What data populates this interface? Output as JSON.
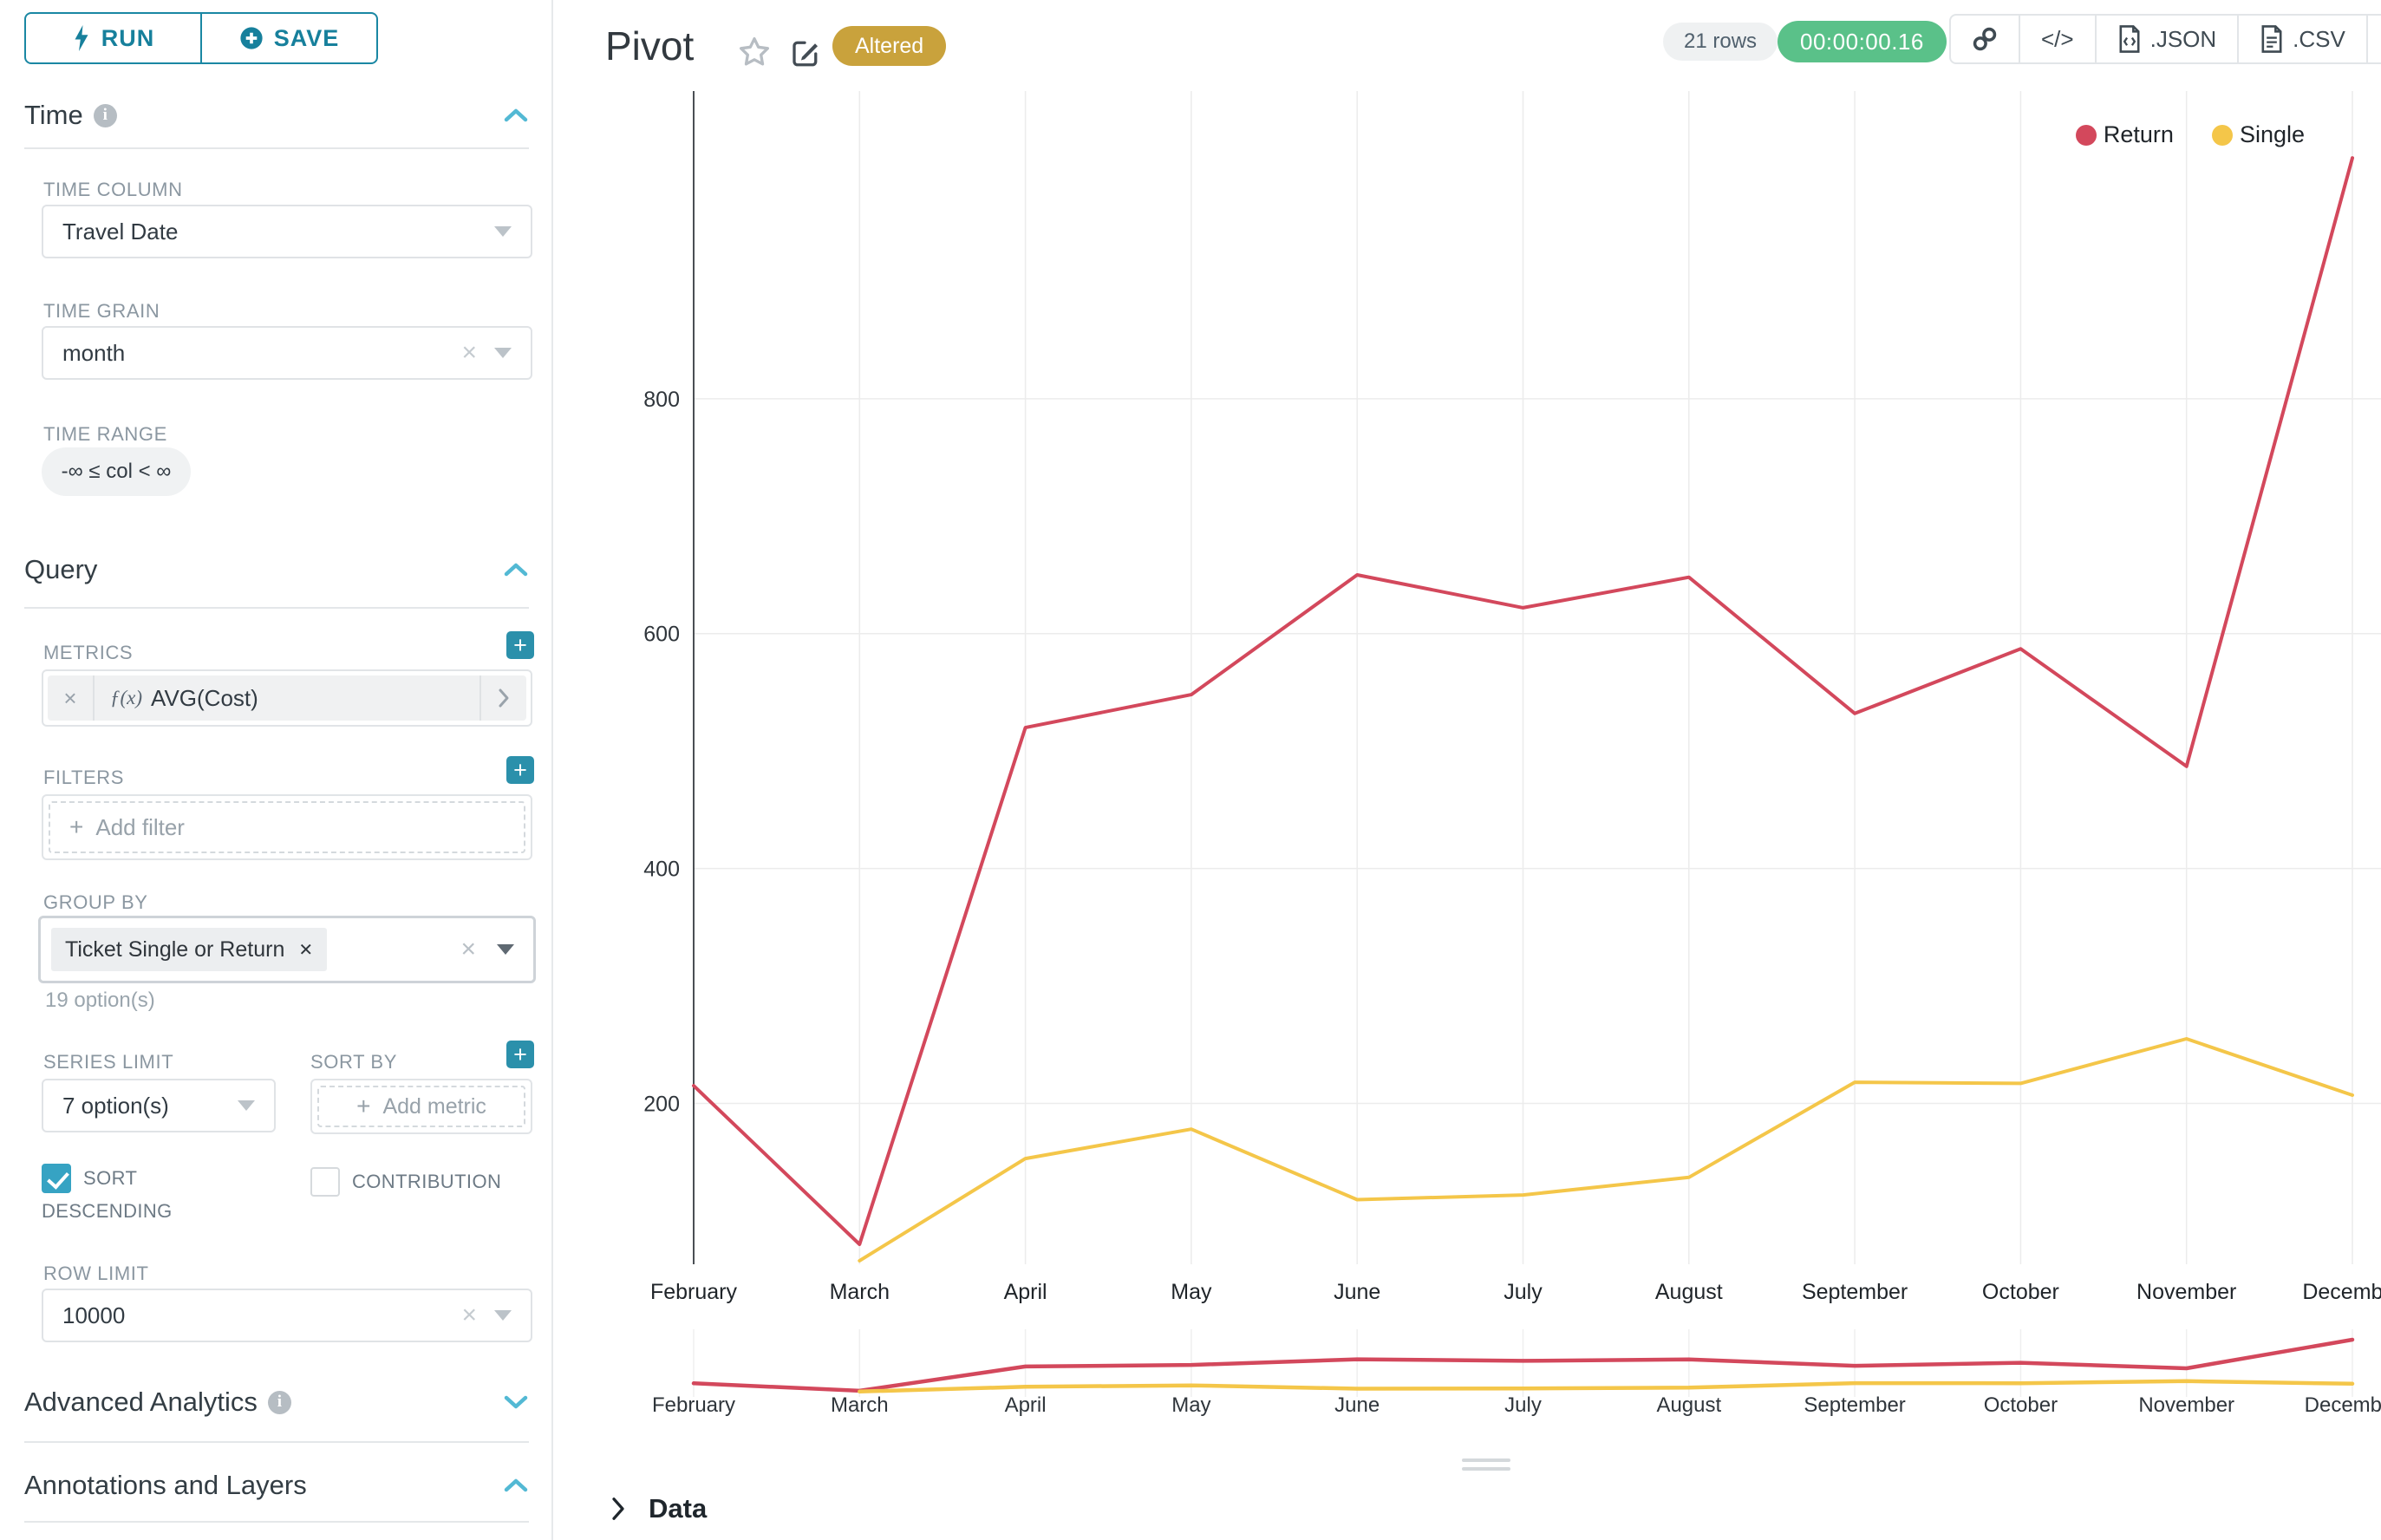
{
  "colors": {
    "accent": "#1a87a3",
    "accent_light": "#53b9d4",
    "plus_button": "#2b90ab",
    "checkbox": "#36a3c3",
    "altered_badge": "#c9a23c",
    "timer_pill": "#5ac189",
    "series_return": "#d3485c",
    "series_single": "#f4c649"
  },
  "sidebar": {
    "run_label": "RUN",
    "save_label": "SAVE",
    "time": {
      "title": "Time",
      "column_label": "TIME COLUMN",
      "column_value": "Travel Date",
      "grain_label": "TIME GRAIN",
      "grain_value": "month",
      "range_label": "TIME RANGE",
      "range_value": "-∞ ≤ col < ∞"
    },
    "query": {
      "title": "Query",
      "metrics_label": "METRICS",
      "metric_fx": "ƒ(x)",
      "metric_name": "AVG(Cost)",
      "filters_label": "FILTERS",
      "add_filter_label": "Add filter",
      "group_by_label": "GROUP BY",
      "group_by_value": "Ticket Single or Return",
      "group_by_hint": "19 option(s)",
      "series_limit_label": "SERIES LIMIT",
      "series_limit_value": "7 option(s)",
      "sort_by_label": "SORT BY",
      "add_metric_label": "Add metric",
      "sort_descending_label": "SORT DESCENDING",
      "contribution_label": "CONTRIBUTION",
      "row_limit_label": "ROW LIMIT",
      "row_limit_value": "10000"
    },
    "advanced_title": "Advanced Analytics",
    "annotations_title": "Annotations and Layers"
  },
  "header": {
    "title": "Pivot",
    "badge": "Altered",
    "rows": "21 rows",
    "duration": "00:00:00.16",
    "code_icon": "</>",
    "json_label": ".JSON",
    "csv_label": ".CSV"
  },
  "data_panel": {
    "title": "Data"
  },
  "chart_data": {
    "type": "line",
    "title": "",
    "xlabel": "",
    "ylabel": "",
    "categories": [
      "February",
      "March",
      "April",
      "May",
      "June",
      "July",
      "August",
      "September",
      "October",
      "November",
      "December"
    ],
    "series": [
      {
        "name": "Return",
        "color": "#d3485c",
        "values": [
          215,
          80,
          520,
          548,
          650,
          622,
          648,
          532,
          587,
          487,
          1005
        ]
      },
      {
        "name": "Single",
        "color": "#f4c649",
        "values": [
          null,
          66,
          153,
          178,
          118,
          122,
          137,
          218,
          217,
          255,
          207
        ]
      }
    ],
    "ylim": [
      63,
      1062
    ],
    "yticks": [
      200,
      400,
      600,
      800
    ],
    "grid": true,
    "legend_position": "top-right",
    "has_preview_strip": true
  }
}
